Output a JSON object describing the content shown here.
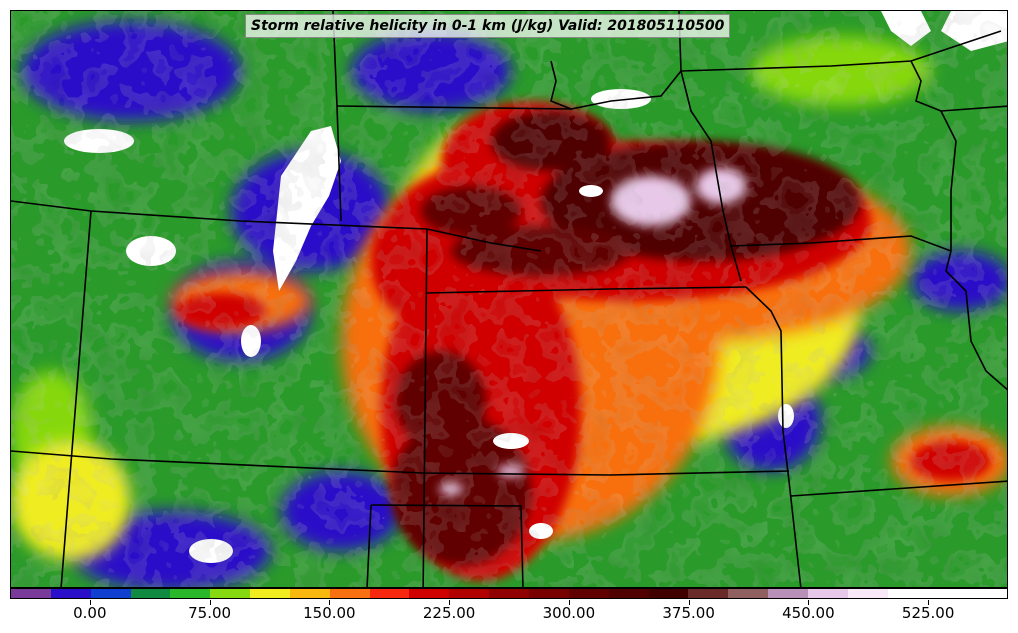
{
  "title": "Storm relative helicity in 0-1 km (J/kg) Valid: 201805110500",
  "colorbar": {
    "colors": [
      "#7a3a9a",
      "#2a10c8",
      "#1040d0",
      "#108a40",
      "#2ab82a",
      "#86d810",
      "#f0ec20",
      "#f8b810",
      "#f87010",
      "#f82810",
      "#d00000",
      "#b00000",
      "#900000",
      "#780000",
      "#600000",
      "#500000",
      "#400000",
      "#6a2a2a",
      "#906060",
      "#b890b8",
      "#e8c8e8",
      "#f8e8f8",
      "#ffffff",
      "#ffffff",
      "#ffffff"
    ],
    "tick_labels": [
      "0.00",
      "75.00",
      "150.00",
      "225.00",
      "300.00",
      "375.00",
      "450.00",
      "525.00"
    ]
  }
}
